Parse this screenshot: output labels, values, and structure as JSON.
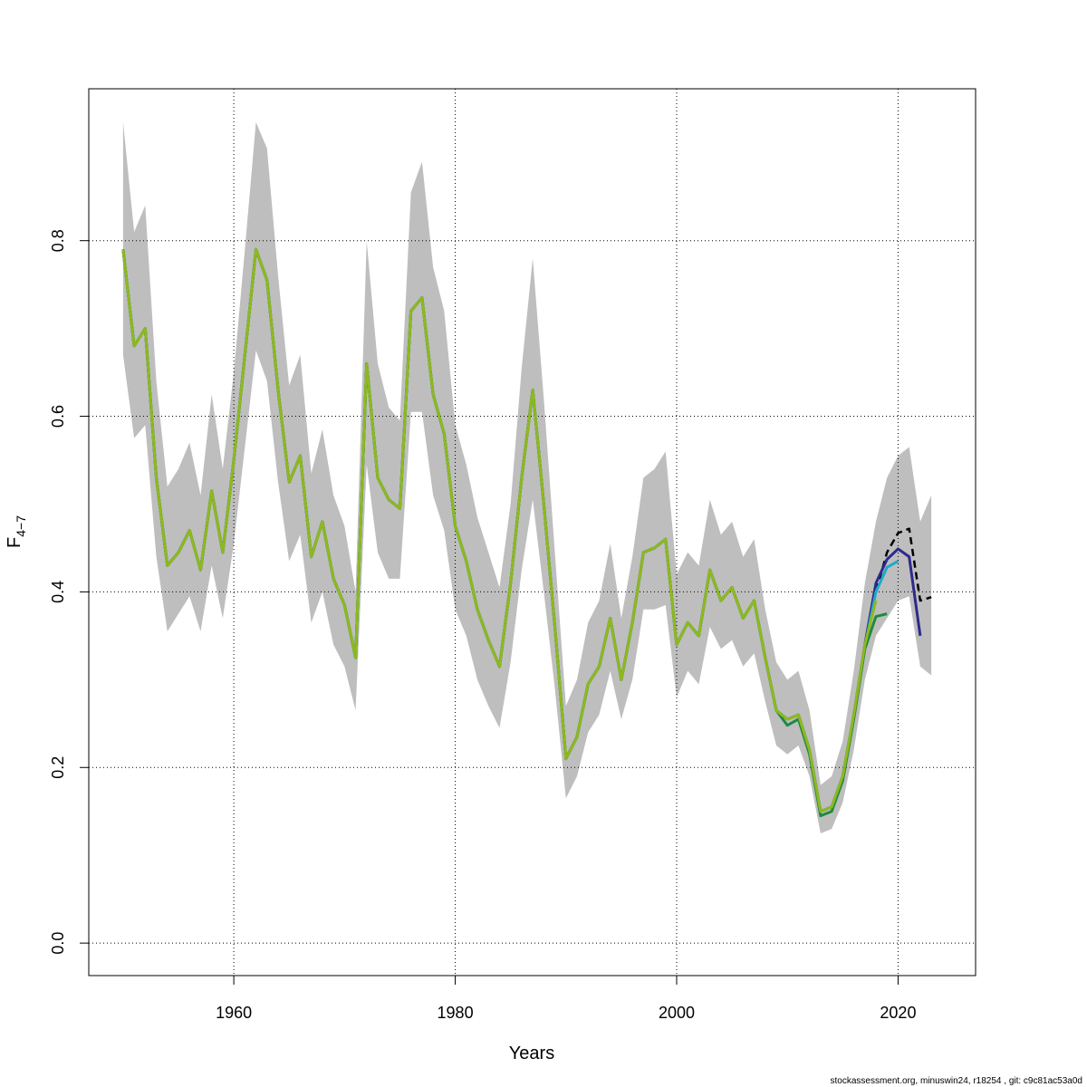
{
  "chart_data": {
    "type": "line",
    "xlabel": "Years",
    "ylabel": "F",
    "ylabel_sub": "4−7",
    "footer": "stockassessment.org, minuswin24, r18254 , git: c9c81ac53a0d",
    "x": [
      1950,
      1951,
      1952,
      1953,
      1954,
      1955,
      1956,
      1957,
      1958,
      1959,
      1960,
      1961,
      1962,
      1963,
      1964,
      1965,
      1966,
      1967,
      1968,
      1969,
      1970,
      1971,
      1972,
      1973,
      1974,
      1975,
      1976,
      1977,
      1978,
      1979,
      1980,
      1981,
      1982,
      1983,
      1984,
      1985,
      1986,
      1987,
      1988,
      1989,
      1990,
      1991,
      1992,
      1993,
      1994,
      1995,
      1996,
      1997,
      1998,
      1999,
      2000,
      2001,
      2002,
      2003,
      2004,
      2005,
      2006,
      2007,
      2008,
      2009,
      2010,
      2011,
      2012,
      2013,
      2014,
      2015,
      2016,
      2017,
      2018,
      2019,
      2020,
      2021,
      2022,
      2023
    ],
    "band": {
      "color": "#bebebe",
      "upper": [
        0.935,
        0.81,
        0.84,
        0.64,
        0.52,
        0.54,
        0.57,
        0.51,
        0.625,
        0.54,
        0.65,
        0.79,
        0.935,
        0.905,
        0.76,
        0.635,
        0.67,
        0.535,
        0.585,
        0.51,
        0.475,
        0.4,
        0.8,
        0.66,
        0.61,
        0.595,
        0.855,
        0.89,
        0.77,
        0.72,
        0.59,
        0.545,
        0.485,
        0.445,
        0.405,
        0.5,
        0.655,
        0.78,
        0.62,
        0.445,
        0.27,
        0.3,
        0.365,
        0.39,
        0.455,
        0.37,
        0.44,
        0.53,
        0.54,
        0.56,
        0.42,
        0.445,
        0.43,
        0.505,
        0.465,
        0.48,
        0.44,
        0.46,
        0.38,
        0.32,
        0.3,
        0.31,
        0.265,
        0.18,
        0.19,
        0.23,
        0.31,
        0.41,
        0.48,
        0.53,
        0.555,
        0.565,
        0.48,
        0.51
      ],
      "lower": [
        0.67,
        0.575,
        0.59,
        0.44,
        0.355,
        0.375,
        0.395,
        0.355,
        0.43,
        0.37,
        0.455,
        0.565,
        0.675,
        0.64,
        0.525,
        0.435,
        0.465,
        0.365,
        0.4,
        0.34,
        0.315,
        0.265,
        0.545,
        0.445,
        0.415,
        0.415,
        0.605,
        0.605,
        0.51,
        0.47,
        0.38,
        0.35,
        0.3,
        0.27,
        0.245,
        0.32,
        0.425,
        0.505,
        0.4,
        0.29,
        0.165,
        0.19,
        0.24,
        0.26,
        0.31,
        0.255,
        0.3,
        0.38,
        0.38,
        0.385,
        0.28,
        0.31,
        0.295,
        0.36,
        0.335,
        0.345,
        0.315,
        0.33,
        0.275,
        0.225,
        0.215,
        0.225,
        0.19,
        0.125,
        0.13,
        0.16,
        0.22,
        0.3,
        0.35,
        0.37,
        0.39,
        0.395,
        0.315,
        0.305
      ]
    },
    "series": [
      {
        "color": "#000000",
        "dashed": true,
        "values": [
          0.79,
          0.68,
          0.7,
          0.53,
          0.43,
          0.445,
          0.47,
          0.425,
          0.515,
          0.445,
          0.55,
          0.67,
          0.79,
          0.755,
          0.63,
          0.525,
          0.555,
          0.44,
          0.48,
          0.415,
          0.385,
          0.325,
          0.66,
          0.53,
          0.505,
          0.495,
          0.72,
          0.735,
          0.625,
          0.58,
          0.475,
          0.435,
          0.38,
          0.345,
          0.315,
          0.41,
          0.53,
          0.63,
          0.5,
          0.36,
          0.21,
          0.235,
          0.295,
          0.315,
          0.37,
          0.3,
          0.365,
          0.445,
          0.45,
          0.46,
          0.34,
          0.365,
          0.35,
          0.425,
          0.39,
          0.405,
          0.37,
          0.39,
          0.325,
          0.265,
          0.255,
          0.26,
          0.22,
          0.15,
          0.155,
          0.19,
          0.26,
          0.34,
          0.4,
          0.445,
          0.467,
          0.472,
          0.39,
          0.394
        ]
      },
      {
        "color": "#2e2a8c",
        "dashed": false,
        "values": [
          0.79,
          0.68,
          0.7,
          0.53,
          0.43,
          0.445,
          0.47,
          0.425,
          0.515,
          0.445,
          0.55,
          0.67,
          0.79,
          0.755,
          0.63,
          0.525,
          0.555,
          0.44,
          0.48,
          0.415,
          0.385,
          0.325,
          0.66,
          0.53,
          0.505,
          0.495,
          0.72,
          0.735,
          0.625,
          0.58,
          0.475,
          0.435,
          0.38,
          0.345,
          0.315,
          0.41,
          0.53,
          0.63,
          0.5,
          0.36,
          0.21,
          0.235,
          0.295,
          0.315,
          0.37,
          0.3,
          0.365,
          0.445,
          0.45,
          0.46,
          0.34,
          0.365,
          0.35,
          0.425,
          0.39,
          0.405,
          0.37,
          0.39,
          0.325,
          0.265,
          0.255,
          0.26,
          0.22,
          0.15,
          0.155,
          0.19,
          0.26,
          0.34,
          0.41,
          0.437,
          0.449,
          0.44,
          0.35,
          null
        ]
      },
      {
        "color": "#1fa9c9",
        "dashed": false,
        "values": [
          0.79,
          0.68,
          0.7,
          0.53,
          0.43,
          0.445,
          0.47,
          0.425,
          0.515,
          0.445,
          0.55,
          0.67,
          0.79,
          0.755,
          0.63,
          0.525,
          0.555,
          0.44,
          0.48,
          0.415,
          0.385,
          0.325,
          0.66,
          0.53,
          0.505,
          0.495,
          0.72,
          0.735,
          0.625,
          0.58,
          0.475,
          0.435,
          0.38,
          0.345,
          0.315,
          0.41,
          0.53,
          0.63,
          0.5,
          0.36,
          0.21,
          0.235,
          0.295,
          0.315,
          0.37,
          0.3,
          0.365,
          0.445,
          0.45,
          0.46,
          0.34,
          0.365,
          0.35,
          0.425,
          0.39,
          0.405,
          0.37,
          0.39,
          0.325,
          0.265,
          0.255,
          0.26,
          0.22,
          0.15,
          0.155,
          0.19,
          0.26,
          0.338,
          0.4,
          0.428,
          0.435,
          null,
          null,
          null
        ]
      },
      {
        "color": "#1e8a3e",
        "dashed": false,
        "values": [
          0.79,
          0.68,
          0.7,
          0.53,
          0.43,
          0.445,
          0.47,
          0.425,
          0.515,
          0.445,
          0.55,
          0.67,
          0.79,
          0.755,
          0.63,
          0.525,
          0.555,
          0.44,
          0.48,
          0.415,
          0.385,
          0.325,
          0.66,
          0.53,
          0.505,
          0.495,
          0.72,
          0.735,
          0.625,
          0.58,
          0.475,
          0.435,
          0.38,
          0.345,
          0.315,
          0.41,
          0.53,
          0.63,
          0.5,
          0.36,
          0.21,
          0.235,
          0.295,
          0.315,
          0.37,
          0.3,
          0.365,
          0.445,
          0.45,
          0.46,
          0.34,
          0.365,
          0.35,
          0.425,
          0.39,
          0.405,
          0.37,
          0.39,
          0.325,
          0.265,
          0.248,
          0.255,
          0.215,
          0.145,
          0.15,
          0.185,
          0.255,
          0.335,
          0.372,
          0.375,
          null,
          null,
          null,
          null
        ]
      },
      {
        "color": "#8fb81e",
        "dashed": false,
        "values": [
          0.79,
          0.68,
          0.7,
          0.53,
          0.43,
          0.445,
          0.47,
          0.425,
          0.515,
          0.445,
          0.55,
          0.67,
          0.79,
          0.755,
          0.63,
          0.525,
          0.555,
          0.44,
          0.48,
          0.415,
          0.385,
          0.325,
          0.66,
          0.53,
          0.505,
          0.495,
          0.72,
          0.735,
          0.625,
          0.58,
          0.475,
          0.435,
          0.38,
          0.345,
          0.315,
          0.41,
          0.53,
          0.63,
          0.5,
          0.36,
          0.21,
          0.235,
          0.295,
          0.315,
          0.37,
          0.3,
          0.365,
          0.445,
          0.45,
          0.46,
          0.34,
          0.365,
          0.35,
          0.425,
          0.39,
          0.405,
          0.37,
          0.39,
          0.325,
          0.265,
          0.255,
          0.26,
          0.22,
          0.15,
          0.155,
          0.19,
          0.26,
          0.34,
          0.39,
          null,
          null,
          null,
          null,
          null
        ]
      }
    ],
    "xlim": [
      1946.9,
      2027.0
    ],
    "xticks": [
      1960,
      1980,
      2000,
      2020
    ],
    "ylim": [
      -0.037,
      0.973
    ],
    "yticks": [
      {
        "value": 0,
        "label": "0.0"
      },
      0.2,
      0.4,
      0.6,
      0.8
    ],
    "grid": true
  }
}
